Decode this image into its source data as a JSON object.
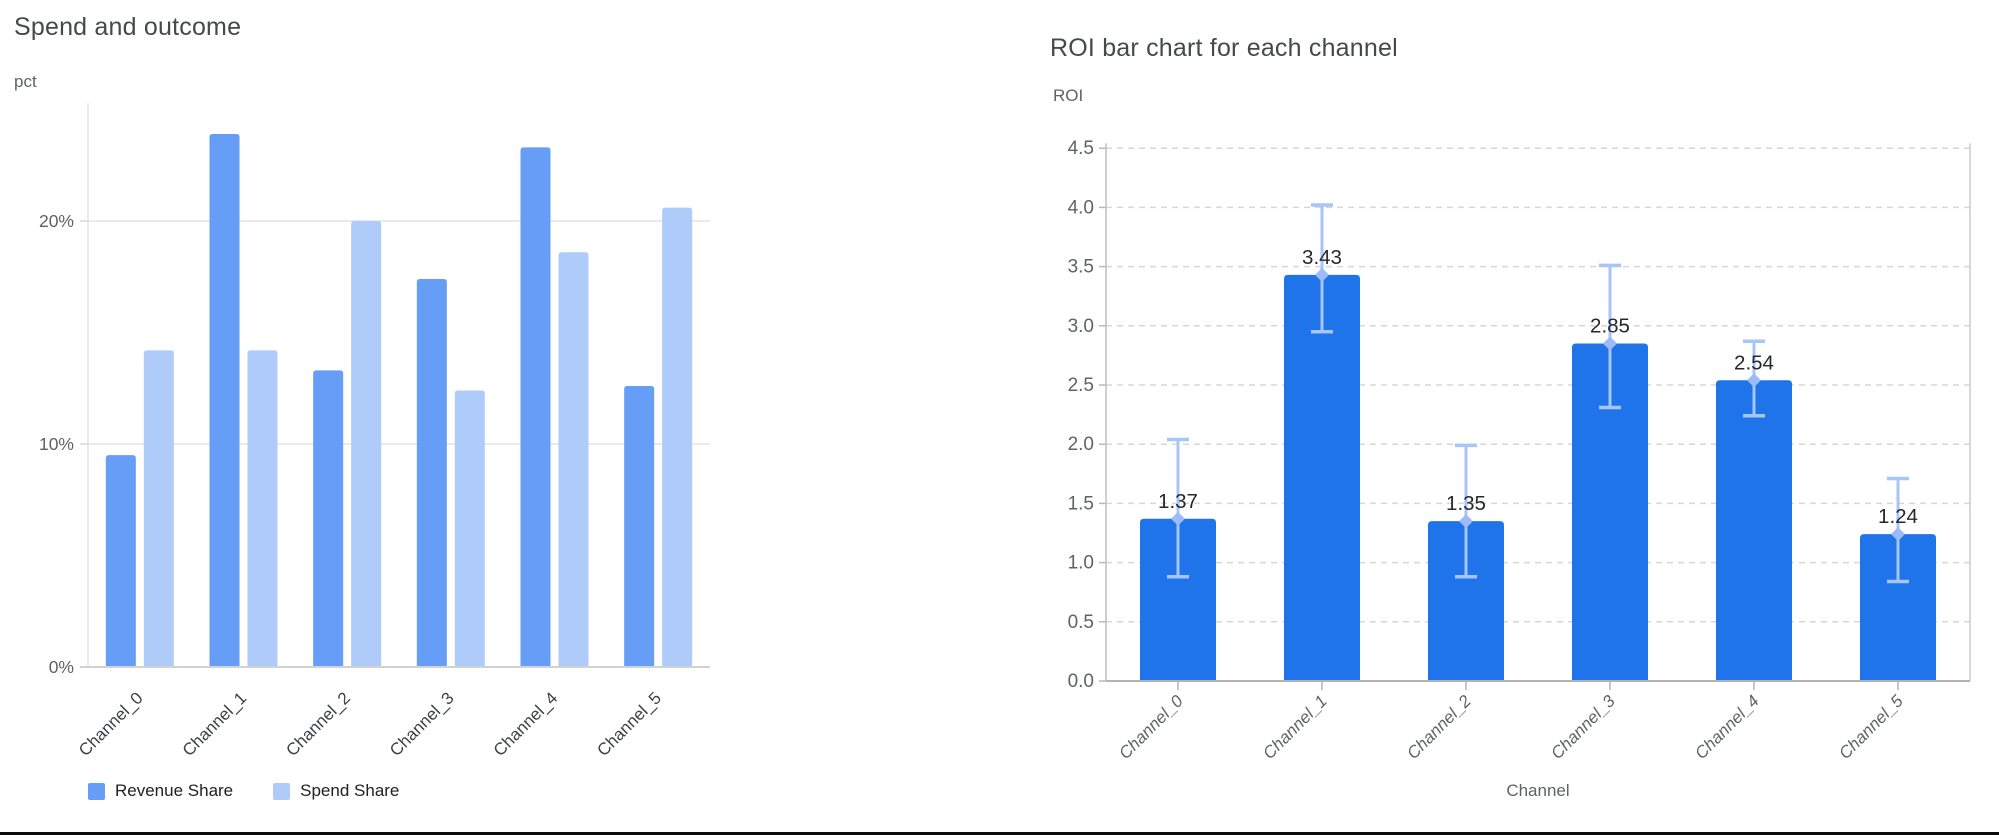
{
  "page": {
    "background": "#ffffff",
    "bottom_rule_color": "#0b0b0b"
  },
  "chart_data": [
    {
      "type": "bar",
      "title": "Spend and outcome",
      "ylabel": "pct",
      "xlabel": "",
      "categories": [
        "Channel_0",
        "Channel_1",
        "Channel_2",
        "Channel_3",
        "Channel_4",
        "Channel_5"
      ],
      "series": [
        {
          "name": "Revenue Share",
          "color": "#669DF6",
          "values": [
            9.5,
            23.9,
            13.3,
            17.4,
            23.3,
            12.6
          ]
        },
        {
          "name": "Spend Share",
          "color": "#AECBFA",
          "values": [
            14.2,
            14.2,
            20.0,
            12.4,
            18.6,
            20.6
          ]
        }
      ],
      "value_unit": "%",
      "y_axis": {
        "min": 0,
        "max": 25.6,
        "ticks": [
          {
            "value": 0,
            "label": "0%"
          },
          {
            "value": 10,
            "label": "10%"
          },
          {
            "value": 20,
            "label": "20%"
          }
        ]
      },
      "grid": "solid",
      "legend_position": "bottom",
      "x_tick_rotation_deg": 45
    },
    {
      "type": "bar",
      "title": "ROI bar chart for each channel",
      "ylabel": "ROI",
      "xlabel": "Channel",
      "categories": [
        "Channel_0",
        "Channel_1",
        "Channel_2",
        "Channel_3",
        "Channel_4",
        "Channel_5"
      ],
      "series": [
        {
          "name": "ROI",
          "color": "#1E74E8",
          "values": [
            1.37,
            3.43,
            1.35,
            2.85,
            2.54,
            1.24
          ]
        }
      ],
      "data_labels": [
        "1.37",
        "3.43",
        "1.35",
        "2.85",
        "2.54",
        "1.24"
      ],
      "error_bars": {
        "color": "#A7C5F9",
        "marker_color": "#9DBCF6",
        "low": [
          0.88,
          2.95,
          0.88,
          2.31,
          2.24,
          0.84
        ],
        "high": [
          2.04,
          4.02,
          1.99,
          3.51,
          2.87,
          1.71
        ]
      },
      "y_axis": {
        "min": 0,
        "max": 4.5,
        "ticks": [
          {
            "value": 0.0,
            "label": "0.0"
          },
          {
            "value": 0.5,
            "label": "0.5"
          },
          {
            "value": 1.0,
            "label": "1.0"
          },
          {
            "value": 1.5,
            "label": "1.5"
          },
          {
            "value": 2.0,
            "label": "2.0"
          },
          {
            "value": 2.5,
            "label": "2.5"
          },
          {
            "value": 3.0,
            "label": "3.0"
          },
          {
            "value": 3.5,
            "label": "3.5"
          },
          {
            "value": 4.0,
            "label": "4.0"
          },
          {
            "value": 4.5,
            "label": "4.5"
          }
        ]
      },
      "grid": "dashed",
      "legend_position": "none",
      "x_tick_rotation_deg": 45,
      "x_tick_style": "italic"
    }
  ]
}
